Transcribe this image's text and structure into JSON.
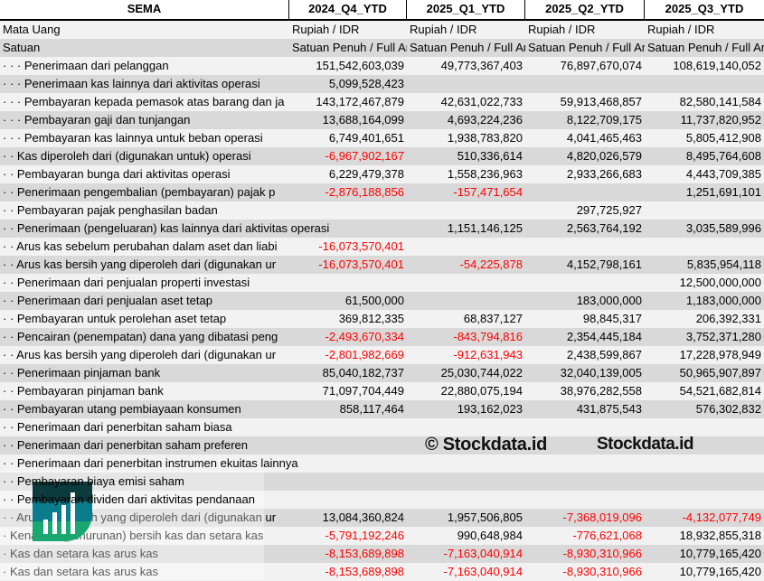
{
  "header": {
    "title": "SEMA",
    "columns": [
      "2024_Q4_YTD",
      "2025_Q1_YTD",
      "2025_Q2_YTD",
      "2025_Q3_YTD"
    ]
  },
  "meta_rows": [
    {
      "label": "Mata Uang",
      "values": [
        "Rupiah / IDR",
        "Rupiah / IDR",
        "Rupiah / IDR",
        "Rupiah / IDR"
      ]
    },
    {
      "label": "Satuan",
      "values": [
        "Satuan Penuh / Full Amount",
        "Satuan Penuh / Full Amount",
        "Satuan Penuh / Full Amount",
        "Satuan Penuh / Full Amount"
      ]
    }
  ],
  "rows": [
    {
      "label": "· · · Penerimaan dari pelanggan",
      "values": [
        "151,542,603,039",
        "49,773,367,403",
        "76,897,670,074",
        "108,619,140,052"
      ]
    },
    {
      "label": "· · · Penerimaan kas lainnya dari aktivitas operasi",
      "values": [
        "5,099,528,423",
        "",
        "",
        ""
      ]
    },
    {
      "label": "· · · Pembayaran kepada pemasok atas barang dan ja",
      "values": [
        "143,172,467,879",
        "42,631,022,733",
        "59,913,468,857",
        "82,580,141,584"
      ]
    },
    {
      "label": "· · · Pembayaran gaji dan tunjangan",
      "values": [
        "13,688,164,099",
        "4,693,224,236",
        "8,122,709,175",
        "11,737,820,952"
      ]
    },
    {
      "label": "· · · Pembayaran kas lainnya untuk beban operasi",
      "values": [
        "6,749,401,651",
        "1,938,783,820",
        "4,041,465,463",
        "5,805,412,908"
      ]
    },
    {
      "label": "· · Kas diperoleh dari (digunakan untuk) operasi",
      "values": [
        "-6,967,902,167",
        "510,336,614",
        "4,820,026,579",
        "8,495,764,608"
      ]
    },
    {
      "label": "· · Pembayaran bunga dari aktivitas operasi",
      "values": [
        "6,229,479,378",
        "1,558,236,963",
        "2,933,266,683",
        "4,443,709,385"
      ]
    },
    {
      "label": "· · Penerimaan pengembalian (pembayaran) pajak p",
      "values": [
        "-2,876,188,856",
        "-157,471,654",
        "",
        "1,251,691,101"
      ]
    },
    {
      "label": "· · Pembayaran pajak penghasilan badan",
      "values": [
        "",
        "",
        "297,725,927",
        ""
      ]
    },
    {
      "label": "· · Penerimaan (pengeluaran) kas lainnya dari aktivitas operasi",
      "values": [
        "",
        "1,151,146,125",
        "2,563,764,192",
        "3,035,589,996"
      ]
    },
    {
      "label": "· · Arus kas sebelum perubahan dalam aset dan liabi",
      "values": [
        "-16,073,570,401",
        "",
        "",
        ""
      ]
    },
    {
      "label": "· · Arus kas bersih yang diperoleh dari (digunakan ur",
      "values": [
        "-16,073,570,401",
        "-54,225,878",
        "4,152,798,161",
        "5,835,954,118"
      ]
    },
    {
      "label": "· · Penerimaan dari penjualan properti investasi",
      "values": [
        "",
        "",
        "",
        "12,500,000,000"
      ]
    },
    {
      "label": "· · Penerimaan dari penjualan aset tetap",
      "values": [
        "61,500,000",
        "",
        "183,000,000",
        "1,183,000,000"
      ]
    },
    {
      "label": "· · Pembayaran untuk perolehan aset tetap",
      "values": [
        "369,812,335",
        "68,837,127",
        "98,845,317",
        "206,392,331"
      ]
    },
    {
      "label": "· · Pencairan (penempatan) dana yang dibatasi peng",
      "values": [
        "-2,493,670,334",
        "-843,794,816",
        "2,354,445,184",
        "3,752,371,280"
      ]
    },
    {
      "label": "· · Arus kas bersih yang diperoleh dari (digunakan ur",
      "values": [
        "-2,801,982,669",
        "-912,631,943",
        "2,438,599,867",
        "17,228,978,949"
      ]
    },
    {
      "label": "· · Penerimaan pinjaman bank",
      "values": [
        "85,040,182,737",
        "25,030,744,022",
        "32,040,139,005",
        "50,965,907,897"
      ]
    },
    {
      "label": "· · Pembayaran pinjaman bank",
      "values": [
        "71,097,704,449",
        "22,880,075,194",
        "38,976,282,558",
        "54,521,682,814"
      ]
    },
    {
      "label": "· · Pembayaran utang pembiayaan konsumen",
      "values": [
        "858,117,464",
        "193,162,023",
        "431,875,543",
        "576,302,832"
      ]
    },
    {
      "label": "· · Penerimaan dari penerbitan saham biasa",
      "values": [
        "",
        "",
        "",
        ""
      ]
    },
    {
      "label": "· · Penerimaan dari penerbitan saham preferen",
      "values": [
        "",
        "",
        "",
        ""
      ]
    },
    {
      "label": "· · Penerimaan dari penerbitan instrumen ekuitas lainnya",
      "values": [
        "",
        "",
        "",
        ""
      ]
    },
    {
      "label": "· · Pembayaran biaya emisi saham",
      "values": [
        "",
        "",
        "",
        ""
      ]
    },
    {
      "label": "· · Pembayaran dividen dari aktivitas pendanaan",
      "values": [
        "",
        "",
        "",
        ""
      ]
    },
    {
      "label": "· · Arus kas bersih yang diperoleh dari (digunakan ur",
      "values": [
        "13,084,360,824",
        "1,957,506,805",
        "-7,368,019,096",
        "-4,132,077,749"
      ]
    },
    {
      "label": "· Kenaikan (penurunan) bersih kas dan setara kas",
      "values": [
        "-5,791,192,246",
        "990,648,984",
        "-776,621,068",
        "18,932,855,318"
      ]
    },
    {
      "label": "· Kas dan setara kas arus kas",
      "values": [
        "-8,153,689,898",
        "-7,163,040,914",
        "-8,930,310,966",
        "10,779,165,420"
      ]
    },
    {
      "label": "· Kas dan setara kas arus kas",
      "values": [
        "-8,153,689,898",
        "-7,163,040,914",
        "-8,930,310,966",
        "10,779,165,420"
      ]
    }
  ],
  "watermark": {
    "copyright": "© Stockdata.id",
    "brand": "Stockdata.id"
  },
  "colors": {
    "negative": "#ff0000",
    "row_light": "#f2f2f2",
    "row_dark": "#d9d9d9",
    "logo_dark": "#0b3b3c",
    "logo_mid": "#0a7c8c",
    "logo_green": "#19a872"
  }
}
